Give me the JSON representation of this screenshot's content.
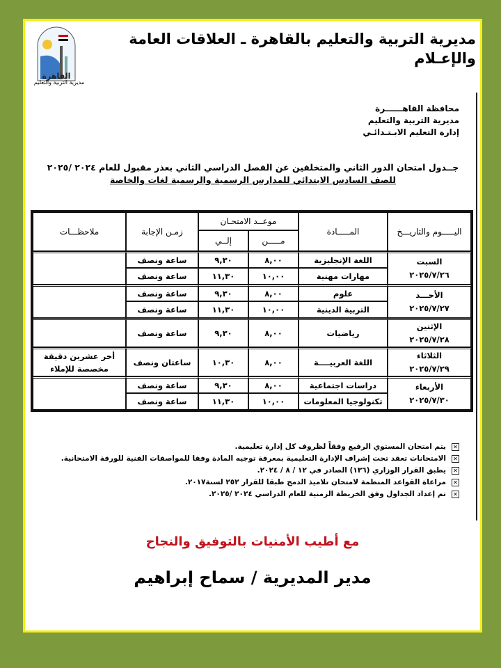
{
  "header": {
    "title": "مديرية التربية والتعليم بالقاهرة ـ العلاقات العامة والإعـلام",
    "logo_text": "القاهرة",
    "logo_caption": "مديرية التربية والتعليم"
  },
  "org": [
    "محافظة القاهــــــرة",
    "مديرية التربية والتعليم",
    "إدارة التعليم الابـتـدائـي"
  ],
  "heading": {
    "line1": "جــدول امتحان الدور الثاني والمتخلفين عن الفصل الدراسي الثاني بعذر مقبول للعام ٢٠٢٤ /٢٠٢٥",
    "line2": "للصف السادس الابتدائي للمدارس الرسمية والرسمية لغات والخاصة"
  },
  "table": {
    "headers": {
      "day": "اليـــــوم والتاريـــخ",
      "subject": "المـــــادة",
      "slot": "موعــد الامتحـان",
      "from": "مـــــن",
      "to": "إلــي",
      "duration": "زمـن الإجابة",
      "notes": "ملاحظـــات"
    },
    "days": [
      {
        "day": "السبت",
        "date": "٢٠٢٥/٧/٢٦",
        "rows": [
          {
            "subject": "اللغة الإنجليزية",
            "from": "٨,٠٠",
            "to": "٩,٣٠",
            "duration": "ساعة ونصف",
            "notes": ""
          },
          {
            "subject": "مهارات مهنية",
            "from": "١٠,٠٠",
            "to": "١١,٣٠",
            "duration": "ساعة ونصف",
            "notes": ""
          }
        ]
      },
      {
        "day": "الأحـــد",
        "date": "٢٠٢٥/٧/٢٧",
        "rows": [
          {
            "subject": "علوم",
            "from": "٨,٠٠",
            "to": "٩,٣٠",
            "duration": "ساعة ونصف",
            "notes": ""
          },
          {
            "subject": "التربية الدينية",
            "from": "١٠,٠٠",
            "to": "١١,٣٠",
            "duration": "ساعة ونصف",
            "notes": ""
          }
        ]
      },
      {
        "day": "الإثنين",
        "date": "٢٠٢٥/٧/٢٨",
        "rows": [
          {
            "subject": "رياضيات",
            "from": "٨,٠٠",
            "to": "٩,٣٠",
            "duration": "ساعة ونصف",
            "notes": ""
          }
        ]
      },
      {
        "day": "الثلاثاء",
        "date": "٢٠٢٥/٧/٢٩",
        "rows": [
          {
            "subject": "اللغة العربيــــة",
            "from": "٨,٠٠",
            "to": "١٠,٣٠",
            "duration": "ساعتان ونصف",
            "notes": "أخر عشرين دقيقة مخصصة للإملاء"
          }
        ]
      },
      {
        "day": "الأربعاء",
        "date": "٢٠٢٥/٧/٣٠",
        "rows": [
          {
            "subject": "دراسات اجتماعية",
            "from": "٨,٠٠",
            "to": "٩,٣٠",
            "duration": "ساعة ونصف",
            "notes": ""
          },
          {
            "subject": "تكنولوجيا المعلومات",
            "from": "١٠,٠٠",
            "to": "١١,٣٠",
            "duration": "ساعة ونصف",
            "notes": ""
          }
        ]
      }
    ]
  },
  "notes": [
    "يتم امتحان المستوي الرفيع وفقاً لظروف كل إدارة تعليمية.",
    "الامتحانات تعقد تحت إشراف الإدارة التعليمية بمعرفة توجيه المادة وفقا للمواصفات الفنية للورقة الامتحانية.",
    "يطبق القرار الوزاري (١٣٦) الصادر في ١٢ / ٨ / ٢٠٢٤.",
    "مراعاة القواعد المنظمة لامتحان تلاميذ الدمج طبقا للقرار ٢٥٢ لسنة٢٠١٧.",
    "تم إعداد الجداول وفق الخريطة الزمنية للعام الدراسي ٢٠٢٤ /٢٠٢٥."
  ],
  "closing": {
    "wish": "مع أطيب الأمنيات بالتوفيق والنجاح",
    "signature": "مدير المديرية / سماح إبراهيم"
  },
  "colors": {
    "background": "#7d9a3c",
    "frame": "#f3ee1a",
    "wish": "#c0141c"
  }
}
